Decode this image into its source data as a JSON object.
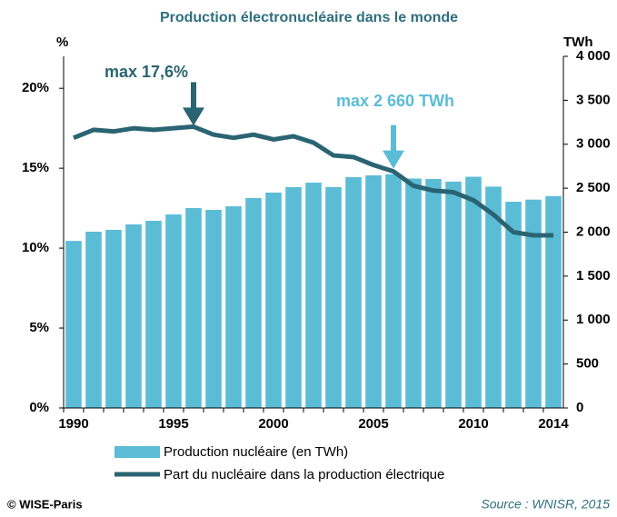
{
  "chart_data": {
    "type": "bar",
    "title": "Production électronucléaire dans le monde",
    "y_label": "%",
    "y2_label": "TWh",
    "categories": [
      "1990",
      null,
      null,
      null,
      null,
      "1995",
      null,
      null,
      null,
      null,
      "2000",
      null,
      null,
      null,
      null,
      "2005",
      null,
      null,
      null,
      null,
      "2010",
      null,
      null,
      null,
      "2014"
    ],
    "series": [
      {
        "name": "Production nucléaire (en TWh)",
        "type": "bar",
        "axis": "y2",
        "color": "#5bbcd6",
        "values": [
          1900,
          2005,
          2026,
          2088,
          2129,
          2201,
          2274,
          2253,
          2294,
          2388,
          2450,
          2512,
          2563,
          2512,
          2625,
          2646,
          2660,
          2610,
          2605,
          2575,
          2630,
          2518,
          2346,
          2370,
          2410
        ]
      },
      {
        "name": "Part du nucléaire dans la production électrique",
        "type": "line",
        "axis": "y",
        "color": "#2a6472",
        "values": [
          16.9,
          17.4,
          17.3,
          17.5,
          17.4,
          17.5,
          17.6,
          17.1,
          16.9,
          17.1,
          16.8,
          17.0,
          16.6,
          15.8,
          15.7,
          15.2,
          14.8,
          13.9,
          13.6,
          13.5,
          13.0,
          12.1,
          11.0,
          10.8,
          10.8
        ]
      }
    ],
    "ylim": [
      0,
      22
    ],
    "yticks": [
      {
        "value": 0,
        "label": "0%"
      },
      {
        "value": 5,
        "label": "5%"
      },
      {
        "value": 10,
        "label": "10%"
      },
      {
        "value": 15,
        "label": "15%"
      },
      {
        "value": 20,
        "label": "20%"
      }
    ],
    "y2lim": [
      0,
      4000
    ],
    "y2ticks": [
      0,
      500,
      {
        "value": 1000,
        "label": "1 000"
      },
      {
        "value": 1500,
        "label": "1 500"
      },
      {
        "value": 2000,
        "label": "2 000"
      },
      {
        "value": 2500,
        "label": "2 500"
      },
      {
        "value": 3000,
        "label": "3 000"
      },
      {
        "value": 3500,
        "label": "3 500"
      },
      {
        "value": 4000,
        "label": "4 000"
      }
    ],
    "annotations": [
      "max 17,6%",
      "max 2 660 TWh"
    ],
    "credit": "© WISE-Paris",
    "source": "Source : WNISR, 2015"
  }
}
